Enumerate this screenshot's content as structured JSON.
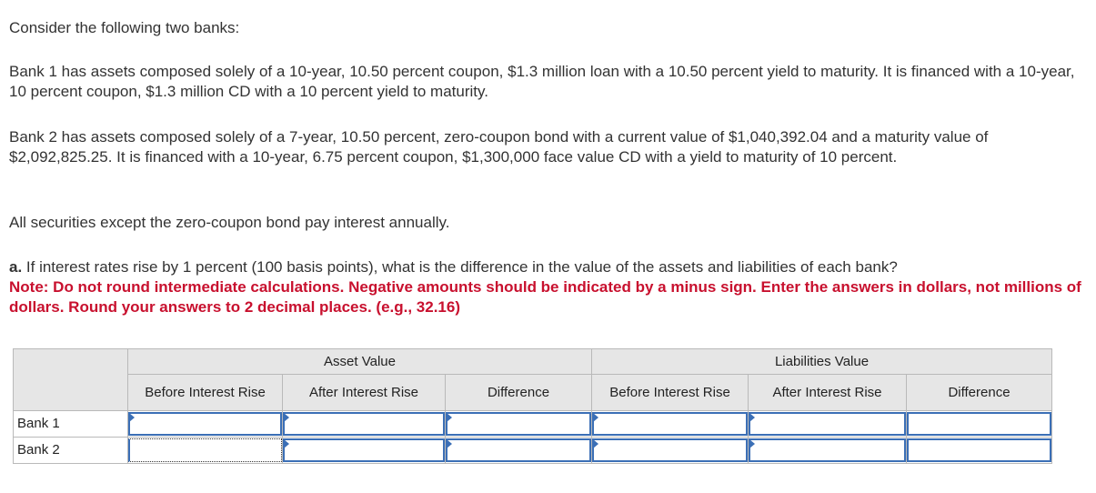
{
  "intro": "Consider the following two banks:",
  "bank1_text": "Bank 1 has assets composed solely of a 10-year, 10.50 percent coupon, $1.3 million loan with a 10.50 percent yield to maturity. It is financed with a 10-year, 10 percent coupon, $1.3 million CD with a 10 percent yield to maturity.",
  "bank2_text": "Bank 2 has assets composed solely of a 7-year, 10.50 percent, zero-coupon bond with a current value of $1,040,392.04 and a maturity value of $2,092,825.25. It is financed with a 10-year, 6.75 percent coupon, $1,300,000 face value CD with a yield to maturity of 10 percent.",
  "securities_text": "All securities except the zero-coupon bond pay interest annually.",
  "question": {
    "label": "a.",
    "text": " If interest rates rise by 1 percent (100 basis points), what is the difference in the value of the assets and liabilities of each bank?",
    "note": "Note: Do not round intermediate calculations. Negative amounts should be indicated by a minus sign. Enter the answers in dollars, not millions of dollars. Round your answers to 2 decimal places. (e.g., 32.16)"
  },
  "table": {
    "group_asset": "Asset Value",
    "group_liab": "Liabilities Value",
    "cols": {
      "before": "Before Interest Rise",
      "after": "After Interest Rise",
      "difference": "Difference"
    },
    "rows": [
      {
        "label": "Bank 1",
        "values": [
          "",
          "",
          "",
          "",
          "",
          ""
        ]
      },
      {
        "label": "Bank 2",
        "values": [
          "",
          "",
          "",
          "",
          "",
          ""
        ]
      }
    ]
  }
}
